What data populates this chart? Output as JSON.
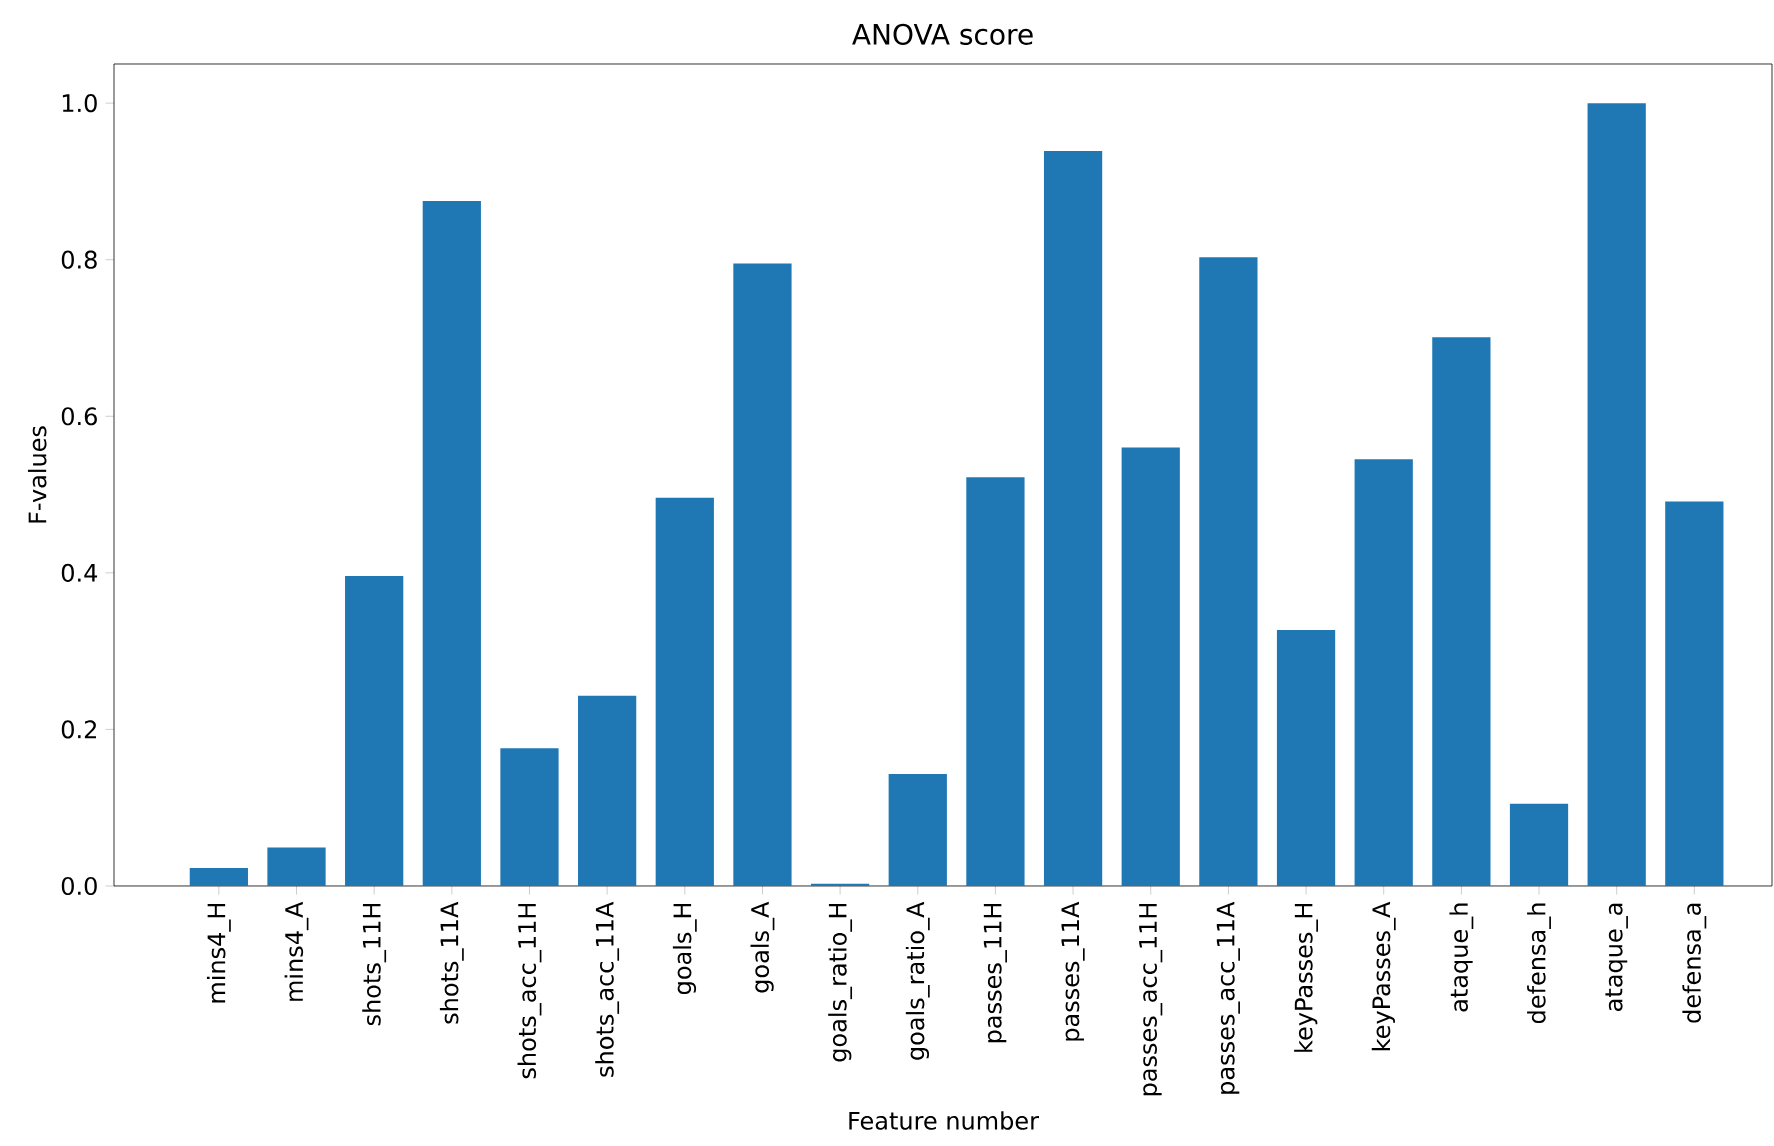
{
  "chart_data": {
    "type": "bar",
    "title": "ANOVA score",
    "xlabel": "Feature number",
    "ylabel": "F-values",
    "categories": [
      "mins4_H",
      "mins4_A",
      "shots_11H",
      "shots_11A",
      "shots_acc_11H",
      "shots_acc_11A",
      "goals_H",
      "goals_A",
      "goals_ratio_H",
      "goals_ratio_A",
      "passes_11H",
      "passes_11A",
      "passes_acc_11H",
      "passes_acc_11A",
      "keyPasses_H",
      "keyPasses_A",
      "ataque_h",
      "defensa_h",
      "ataque_a",
      "defensa_a"
    ],
    "values": [
      0.023,
      0.049,
      0.396,
      0.875,
      0.176,
      0.243,
      0.496,
      0.795,
      0.003,
      0.143,
      0.522,
      0.939,
      0.56,
      0.803,
      0.327,
      0.545,
      0.701,
      0.105,
      1.0,
      0.491
    ],
    "color": "#1f77b4",
    "ylim": [
      0,
      1.05
    ],
    "yticks": [
      {
        "value": 0,
        "label": "0.0"
      },
      {
        "value": 0.2,
        "label": "0.2"
      },
      {
        "value": 0.4,
        "label": "0.4"
      },
      {
        "value": 0.6,
        "label": "0.6"
      },
      {
        "value": 0.8,
        "label": "0.8"
      },
      {
        "value": 1.0,
        "label": "1.0"
      }
    ]
  }
}
